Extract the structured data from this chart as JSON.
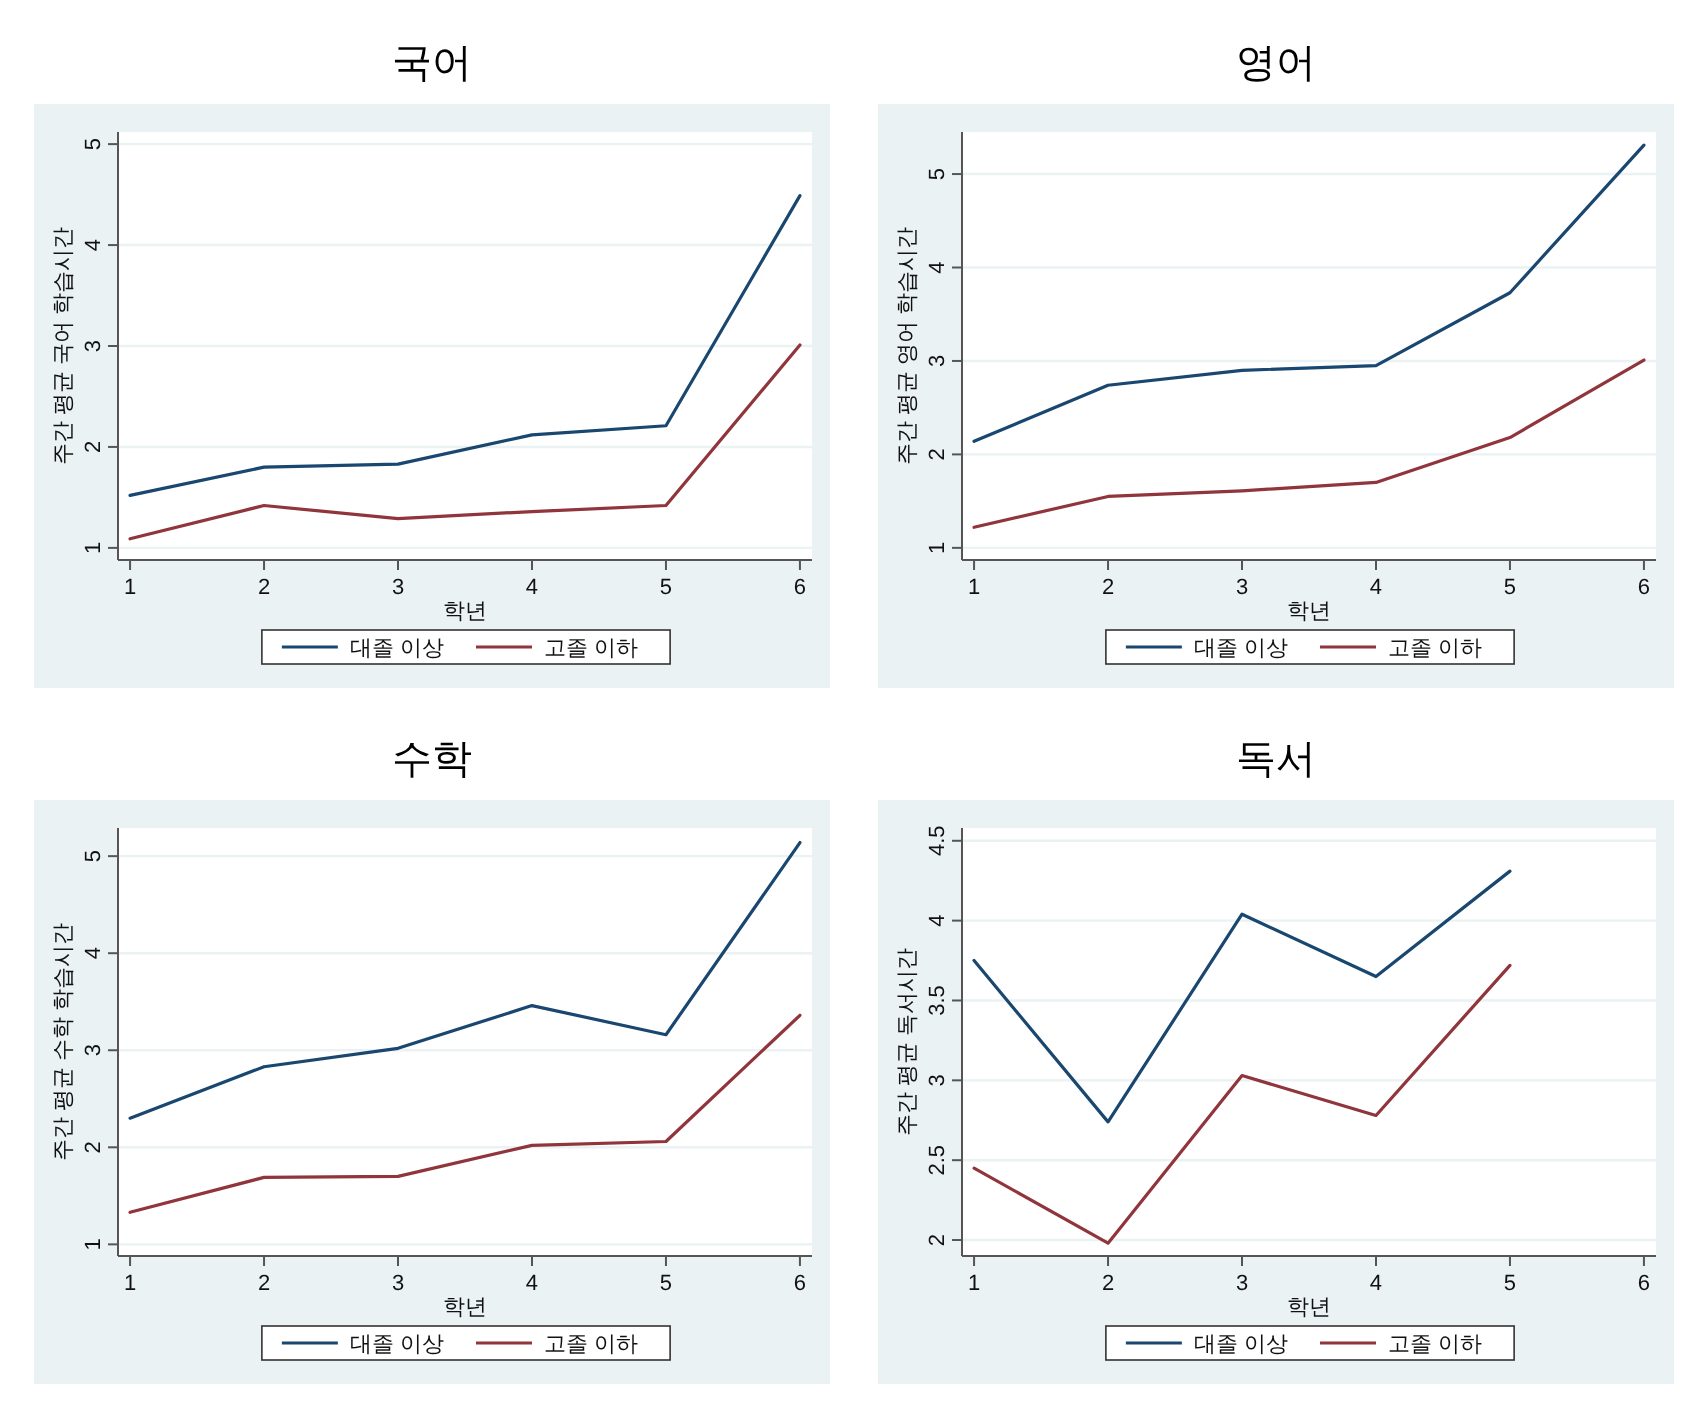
{
  "chart_data": [
    {
      "type": "line",
      "title": "국어",
      "xlabel": "학년",
      "ylabel": "주간 평균 국어 학습시간",
      "x": [
        1,
        2,
        3,
        4,
        5,
        6
      ],
      "xlim": [
        0.91,
        6.09
      ],
      "ylim": [
        0.88,
        5.12
      ],
      "xticks": [
        1,
        2,
        3,
        4,
        5,
        6
      ],
      "yticks": [
        1,
        2,
        3,
        4,
        5
      ],
      "grid": "y",
      "legend": "bottom",
      "series": [
        {
          "name": "대졸 이상",
          "color": "#1a476f",
          "values": [
            1.52,
            1.8,
            1.83,
            2.12,
            2.21,
            4.49
          ]
        },
        {
          "name": "고졸 이하",
          "color": "#90353b",
          "values": [
            1.09,
            1.42,
            1.29,
            1.36,
            1.42,
            3.01
          ]
        }
      ]
    },
    {
      "type": "line",
      "title": "영어",
      "xlabel": "학년",
      "ylabel": "주간 평균 영어 학습시간",
      "x": [
        1,
        2,
        3,
        4,
        5,
        6
      ],
      "xlim": [
        0.91,
        6.09
      ],
      "ylim": [
        0.87,
        5.45
      ],
      "xticks": [
        1,
        2,
        3,
        4,
        5,
        6
      ],
      "yticks": [
        1,
        2,
        3,
        4,
        5
      ],
      "grid": "y",
      "legend": "bottom",
      "series": [
        {
          "name": "대졸 이상",
          "color": "#1a476f",
          "values": [
            2.14,
            2.74,
            2.9,
            2.95,
            3.73,
            5.31
          ]
        },
        {
          "name": "고졸 이하",
          "color": "#90353b",
          "values": [
            1.22,
            1.55,
            1.61,
            1.7,
            2.18,
            3.01
          ]
        }
      ]
    },
    {
      "type": "line",
      "title": "수학",
      "xlabel": "학년",
      "ylabel": "주간 평균 수학 학습시간",
      "x": [
        1,
        2,
        3,
        4,
        5,
        6
      ],
      "xlim": [
        0.91,
        6.09
      ],
      "ylim": [
        0.88,
        5.29
      ],
      "xticks": [
        1,
        2,
        3,
        4,
        5,
        6
      ],
      "yticks": [
        1,
        2,
        3,
        4,
        5
      ],
      "grid": "y",
      "legend": "bottom",
      "series": [
        {
          "name": "대졸 이상",
          "color": "#1a476f",
          "values": [
            2.3,
            2.83,
            3.02,
            3.46,
            3.16,
            5.14
          ]
        },
        {
          "name": "고졸 이하",
          "color": "#90353b",
          "values": [
            1.33,
            1.69,
            1.7,
            2.02,
            2.06,
            3.36
          ]
        }
      ]
    },
    {
      "type": "line",
      "title": "독서",
      "xlabel": "학년",
      "ylabel": "주간 평균 독서시간",
      "x": [
        1,
        2,
        3,
        4,
        5
      ],
      "xlim": [
        0.91,
        6.09
      ],
      "ylim": [
        1.9,
        4.58
      ],
      "xticks": [
        1,
        2,
        3,
        4,
        5,
        6
      ],
      "yticks": [
        2,
        2.5,
        3,
        3.5,
        4,
        4.5
      ],
      "grid": "y",
      "legend": "bottom",
      "series": [
        {
          "name": "대졸 이상",
          "color": "#1a476f",
          "values": [
            3.75,
            2.74,
            4.04,
            3.65,
            4.31
          ]
        },
        {
          "name": "고졸 이하",
          "color": "#90353b",
          "values": [
            2.45,
            1.98,
            3.03,
            2.78,
            3.72
          ]
        }
      ]
    }
  ]
}
